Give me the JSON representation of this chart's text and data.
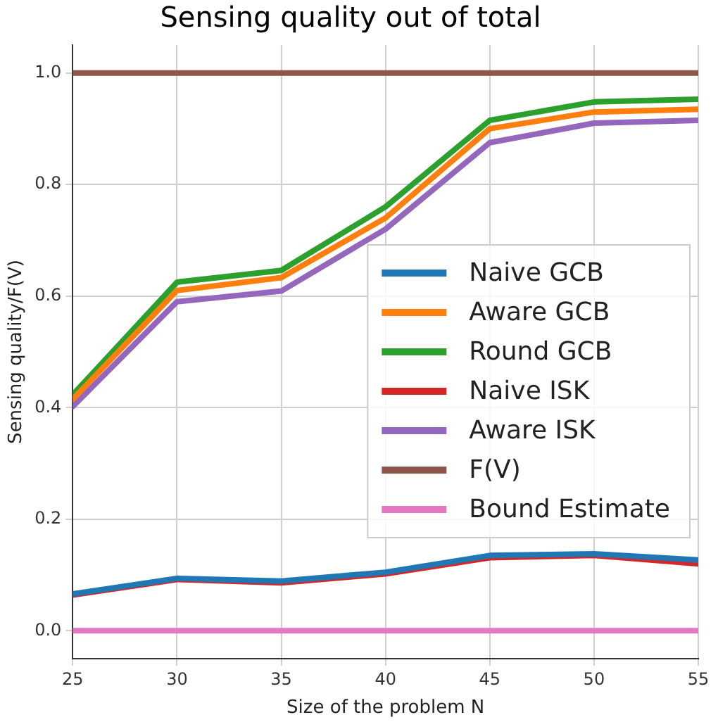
{
  "chart_data": {
    "type": "line",
    "title": "Sensing quality out of total",
    "xlabel": "Size of the problem N",
    "ylabel": "Sensing quality/F(V)",
    "x": [
      25,
      30,
      35,
      40,
      45,
      50,
      55
    ],
    "series": [
      {
        "name": "Naive GCB",
        "color": "#1f77b4",
        "values": [
          0.066,
          0.094,
          0.089,
          0.105,
          0.135,
          0.138,
          0.127
        ]
      },
      {
        "name": "Aware GCB",
        "color": "#ff7f0e",
        "values": [
          0.415,
          0.61,
          0.633,
          0.74,
          0.9,
          0.93,
          0.935
        ]
      },
      {
        "name": "Round GCB",
        "color": "#2ca02c",
        "values": [
          0.423,
          0.625,
          0.646,
          0.76,
          0.915,
          0.948,
          0.953
        ]
      },
      {
        "name": "Naive ISK",
        "color": "#d62728",
        "values": [
          0.064,
          0.092,
          0.086,
          0.102,
          0.131,
          0.135,
          0.12
        ]
      },
      {
        "name": "Aware ISK",
        "color": "#9467bd",
        "values": [
          0.402,
          0.59,
          0.609,
          0.72,
          0.875,
          0.91,
          0.915
        ]
      },
      {
        "name": "F(V)",
        "color": "#8c564b",
        "values": [
          1,
          1,
          1,
          1,
          1,
          1,
          1
        ]
      },
      {
        "name": "Bound Estimate",
        "color": "#e377c2",
        "values": [
          0,
          0,
          0,
          0,
          0,
          0,
          0
        ]
      }
    ],
    "xlim": [
      25,
      55
    ],
    "xticks": [
      25,
      30,
      35,
      40,
      45,
      50,
      55
    ],
    "ylim": [
      -0.05,
      1.05
    ],
    "yticks": [
      {
        "value": 0,
        "label": "0.0"
      },
      {
        "value": 0.2,
        "label": "0.2"
      },
      {
        "value": 0.4,
        "label": "0.4"
      },
      {
        "value": 0.6,
        "label": "0.6"
      },
      {
        "value": 0.8,
        "label": "0.8"
      },
      {
        "value": 1,
        "label": "1.0"
      }
    ],
    "grid": true,
    "legend": "right",
    "marker": "none",
    "line_style": "solid"
  }
}
